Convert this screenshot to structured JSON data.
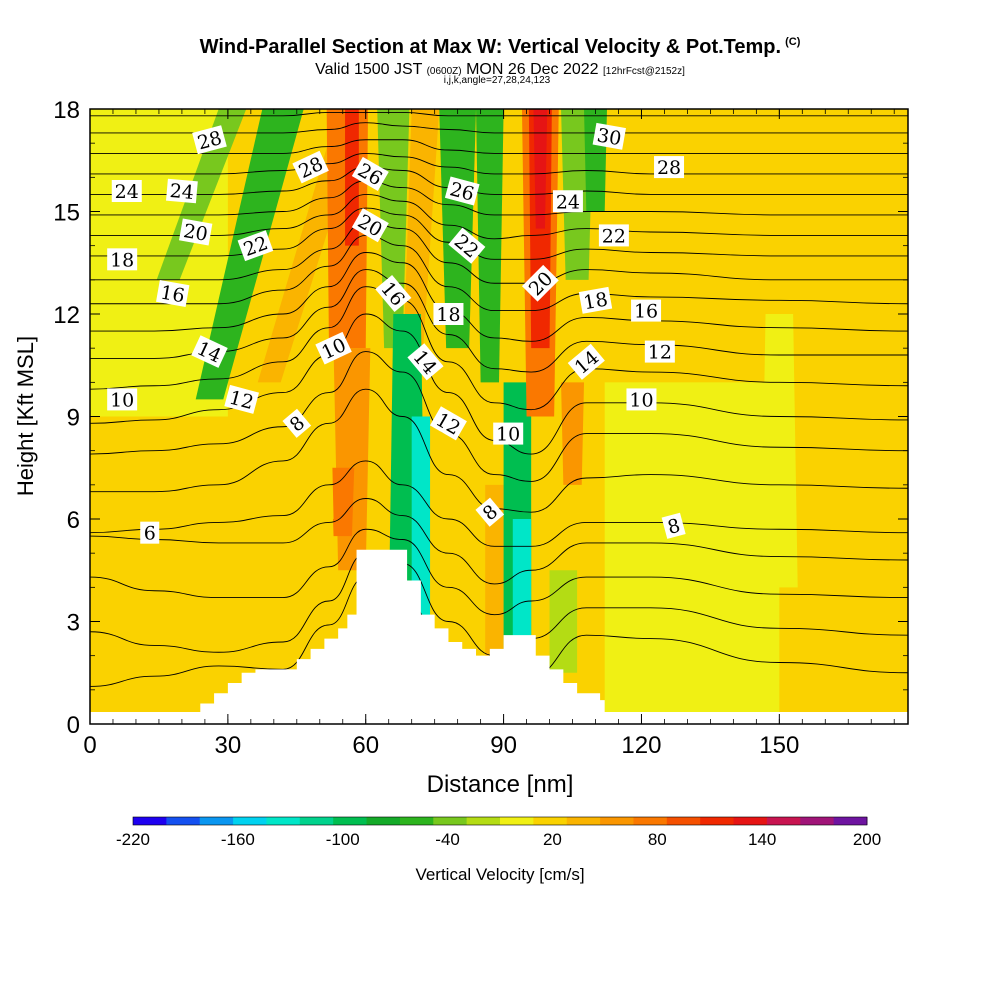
{
  "title": {
    "main": "Wind-Parallel Section at Max W: Vertical Velocity & Pot.Temp.",
    "copyright": "(C)",
    "valid_a": "Valid 1500 JST",
    "valid_z": "(0600Z)",
    "valid_b": "MON 26 Dec 2022",
    "fcst": "[12hrFcst@2152z]",
    "indices": "i,j,k,angle=27,28,24,123"
  },
  "chart_data": {
    "type": "heatmap",
    "xlabel": "Distance [nm]",
    "ylabel": "Height [Kft MSL]",
    "xlim": [
      0,
      178
    ],
    "ylim": [
      0,
      18
    ],
    "xticks": [
      "0",
      "30",
      "60",
      "90",
      "120",
      "150"
    ],
    "xtick_values": [
      0,
      30,
      60,
      90,
      120,
      150
    ],
    "yticks": [
      "0",
      "3",
      "6",
      "9",
      "12",
      "15",
      "18"
    ],
    "ytick_values": [
      0,
      3,
      6,
      9,
      12,
      15,
      18
    ],
    "terrain": {
      "x": [
        0,
        22,
        24,
        27,
        30,
        33,
        36,
        42,
        45,
        48,
        51,
        54,
        56,
        58,
        66,
        69,
        72,
        75,
        78,
        81,
        84,
        87,
        90,
        96,
        97,
        100,
        103,
        106,
        111,
        112,
        178
      ],
      "height": [
        0.35,
        0.35,
        0.6,
        0.9,
        1.2,
        1.5,
        1.6,
        1.6,
        1.9,
        2.2,
        2.5,
        2.8,
        3.2,
        5.1,
        5.1,
        4.2,
        3.2,
        2.8,
        2.4,
        2.2,
        2.0,
        2.2,
        2.6,
        2.6,
        2.0,
        1.6,
        1.2,
        0.9,
        0.7,
        0.35,
        0.35
      ]
    },
    "velocity_colorbar": {
      "label": "Vertical Velocity [cm/s]",
      "tick_labels": [
        "-220",
        "-160",
        "-100",
        "-40",
        "20",
        "80",
        "140",
        "200"
      ],
      "colors": [
        "#1e00f0",
        "#1450f0",
        "#0a96f0",
        "#00d2f0",
        "#00e6c8",
        "#00d28c",
        "#00be50",
        "#14aa28",
        "#2db41e",
        "#78c81e",
        "#b4dc14",
        "#f0f014",
        "#fad200",
        "#fab400",
        "#fa9600",
        "#fa7800",
        "#f55000",
        "#f02800",
        "#e61414",
        "#c81450",
        "#a01478",
        "#6e14a0"
      ]
    },
    "velocity_bands": [
      {
        "x": 26,
        "wb": 6,
        "wt": 9,
        "lean": 16,
        "y0": 9.5,
        "y1": 18,
        "w": -45
      },
      {
        "x": 17,
        "wb": 5,
        "wt": 6,
        "lean": 14,
        "y0": 13,
        "y1": 18,
        "w": -40
      },
      {
        "x": 39,
        "wb": 5,
        "wt": 6,
        "lean": 18,
        "y0": 10,
        "y1": 18,
        "w": 55
      },
      {
        "x": 57,
        "wb": 6,
        "wt": 8,
        "lean": 0,
        "y0": 4.5,
        "y1": 11,
        "w": 60
      },
      {
        "x": 55,
        "wb": 4,
        "wt": 5,
        "lean": 0,
        "y0": 5.5,
        "y1": 7.5,
        "w": 95
      },
      {
        "x": 56,
        "wb": 8,
        "wt": 9,
        "lean": 0,
        "y0": 11,
        "y1": 18,
        "w": 95
      },
      {
        "x": 57,
        "wb": 3,
        "wt": 3,
        "lean": 0,
        "y0": 14,
        "y1": 18,
        "w": 125
      },
      {
        "x": 66,
        "wb": 4,
        "wt": 7,
        "lean": 0,
        "y0": 11,
        "y1": 18,
        "w": -40
      },
      {
        "x": 70,
        "wb": 4,
        "wt": 6,
        "lean": 3,
        "y0": 10,
        "y1": 18,
        "w": 55
      },
      {
        "x": 69,
        "wb": 8,
        "wt": 6,
        "lean": 0,
        "y0": 3,
        "y1": 12,
        "w": -85
      },
      {
        "x": 72,
        "wb": 4,
        "wt": 4,
        "lean": 0,
        "y0": 3,
        "y1": 9,
        "w": -125
      },
      {
        "x": 80,
        "wb": 5,
        "wt": 8,
        "lean": 0,
        "y0": 11,
        "y1": 18,
        "w": -45
      },
      {
        "x": 87,
        "wb": 4,
        "wt": 6,
        "lean": 0,
        "y0": 10,
        "y1": 18,
        "w": -60
      },
      {
        "x": 88,
        "wb": 4,
        "wt": 4,
        "lean": 0,
        "y0": 2,
        "y1": 7,
        "w": 50
      },
      {
        "x": 93,
        "wb": 6,
        "wt": 6,
        "lean": 0,
        "y0": 2,
        "y1": 10,
        "w": -100
      },
      {
        "x": 94,
        "wb": 4,
        "wt": 4,
        "lean": 0,
        "y0": 2,
        "y1": 6,
        "w": -140
      },
      {
        "x": 98,
        "wb": 6,
        "wt": 8,
        "lean": 0,
        "y0": 9,
        "y1": 18,
        "w": 85
      },
      {
        "x": 98,
        "wb": 4,
        "wt": 5,
        "lean": 0,
        "y0": 11,
        "y1": 18,
        "w": 125
      },
      {
        "x": 98,
        "wb": 2,
        "wt": 3,
        "lean": 0,
        "y0": 14.5,
        "y1": 18,
        "w": 150
      },
      {
        "x": 105,
        "wb": 4,
        "wt": 5,
        "lean": 0,
        "y0": 7,
        "y1": 10,
        "w": 75
      },
      {
        "x": 106,
        "wb": 5,
        "wt": 7,
        "lean": 0,
        "y0": 13,
        "y1": 18,
        "w": -40
      },
      {
        "x": 110,
        "wb": 4,
        "wt": 5,
        "lean": 0,
        "y0": 15,
        "y1": 18,
        "w": -45
      },
      {
        "x": 103,
        "wb": 6,
        "wt": 6,
        "lean": 0,
        "y0": 1.5,
        "y1": 4.5,
        "w": -15
      },
      {
        "x": 168,
        "wb": 12,
        "wt": 8,
        "lean": 0,
        "y0": 1,
        "y1": 14,
        "w": 25
      },
      {
        "x": 150,
        "wb": 8,
        "wt": 6,
        "lean": 0,
        "y0": 4,
        "y1": 12,
        "w": 18
      },
      {
        "x": 36,
        "wb": 10,
        "wt": 8,
        "lean": 0,
        "y0": 4,
        "y1": 8,
        "w": 25
      },
      {
        "x": 50,
        "wb": 6,
        "wt": 5,
        "lean": 0,
        "y0": 6,
        "y1": 9,
        "w": 35
      }
    ],
    "isentrope_series": [
      {
        "y0": 1.3,
        "d": [
          -0.2,
          0.1,
          0.4,
          0.3,
          1.6,
          3.0,
          2.5,
          0.7,
          -0.5,
          0.1,
          1.3,
          1.2,
          0.5,
          0.2
        ]
      },
      {
        "y0": 2.4,
        "d": [
          0.3,
          -0.1,
          -0.3,
          0.0,
          1.2,
          2.6,
          2.3,
          0.6,
          -0.4,
          0.1,
          1.0,
          1.0,
          0.4,
          0.2
        ]
      },
      {
        "y0": 3.5,
        "d": [
          0.8,
          0.4,
          0.2,
          0.2,
          1.1,
          2.2,
          1.9,
          0.5,
          -0.3,
          0.1,
          0.8,
          0.8,
          0.3,
          0.2
        ]
      },
      {
        "y0": 4.6,
        "d": [
          0.9,
          0.8,
          0.7,
          0.7,
          1.3,
          2.0,
          1.5,
          0.4,
          -0.5,
          -0.1,
          0.7,
          0.7,
          0.3,
          0.2
        ]
      },
      {
        "y0": 5.5,
        "d": [
          0.1,
          0.2,
          0.4,
          0.6,
          1.5,
          2.2,
          1.5,
          0.5,
          -0.3,
          -0.3,
          0.4,
          0.4,
          0.2,
          0.1
        ]
      },
      {
        "y0": 6.8,
        "d": [
          0.0,
          0.0,
          0.2,
          0.9,
          2.0,
          3.0,
          2.2,
          0.5,
          -0.5,
          -0.6,
          0.4,
          0.5,
          0.2,
          0.1
        ]
      },
      {
        "y0": 7.9,
        "d": [
          0.0,
          0.1,
          0.3,
          0.8,
          1.8,
          3.0,
          2.4,
          0.6,
          -0.6,
          -0.8,
          0.6,
          0.6,
          0.2,
          0.1
        ]
      },
      {
        "y0": 8.8,
        "d": [
          0.0,
          0.1,
          0.4,
          0.9,
          2.0,
          3.2,
          2.7,
          0.9,
          -0.5,
          -0.9,
          0.6,
          0.6,
          0.2,
          0.1
        ]
      },
      {
        "y0": 9.8,
        "d": [
          0.0,
          0.1,
          0.3,
          0.8,
          1.8,
          3.0,
          2.6,
          0.8,
          -0.4,
          -0.6,
          0.6,
          0.5,
          0.2,
          0.1
        ]
      },
      {
        "y0": 10.7,
        "d": [
          0.0,
          0.0,
          0.2,
          0.6,
          1.5,
          2.6,
          2.2,
          0.7,
          -0.3,
          -0.4,
          0.5,
          0.4,
          0.1,
          0.1
        ]
      },
      {
        "y0": 11.5,
        "d": [
          0.0,
          0.0,
          0.1,
          0.5,
          1.3,
          2.3,
          2.0,
          0.6,
          -0.2,
          -0.3,
          0.4,
          0.3,
          0.1,
          0.0
        ]
      },
      {
        "y0": 12.3,
        "d": [
          0.0,
          0.0,
          0.0,
          0.4,
          1.1,
          2.0,
          1.7,
          0.5,
          -0.2,
          -0.2,
          0.3,
          0.2,
          0.1,
          0.0
        ]
      },
      {
        "y0": 13.0,
        "d": [
          0.0,
          0.0,
          0.0,
          0.3,
          0.9,
          1.7,
          1.5,
          0.5,
          -0.1,
          -0.1,
          0.3,
          0.2,
          0.0,
          0.0
        ]
      },
      {
        "y0": 13.7,
        "d": [
          0.0,
          0.0,
          0.0,
          0.2,
          0.8,
          1.4,
          1.2,
          0.4,
          -0.1,
          -0.1,
          0.2,
          0.1,
          0.0,
          0.0
        ]
      },
      {
        "y0": 14.3,
        "d": [
          0.0,
          0.0,
          0.0,
          0.2,
          0.6,
          1.2,
          1.0,
          0.3,
          -0.1,
          0.0,
          0.2,
          0.1,
          0.0,
          0.0
        ]
      },
      {
        "y0": 14.9,
        "d": [
          0.0,
          0.0,
          0.0,
          0.1,
          0.5,
          1.0,
          0.8,
          0.3,
          0.0,
          0.0,
          0.1,
          0.1,
          0.0,
          0.0
        ]
      },
      {
        "y0": 15.5,
        "d": [
          0.0,
          0.0,
          0.0,
          0.1,
          0.4,
          0.8,
          0.7,
          0.2,
          0.0,
          0.0,
          0.1,
          0.0,
          0.0,
          0.0
        ]
      },
      {
        "y0": 16.1,
        "d": [
          0.0,
          0.0,
          0.0,
          0.1,
          0.3,
          0.6,
          0.5,
          0.2,
          0.0,
          0.0,
          0.1,
          0.0,
          0.0,
          0.0
        ]
      },
      {
        "y0": 16.7,
        "d": [
          0.0,
          0.0,
          0.0,
          0.0,
          0.2,
          0.4,
          0.4,
          0.1,
          0.0,
          0.0,
          0.0,
          0.0,
          0.0,
          0.0
        ]
      },
      {
        "y0": 17.3,
        "d": [
          0.0,
          0.0,
          0.0,
          0.0,
          0.1,
          0.3,
          0.2,
          0.1,
          0.0,
          0.0,
          0.0,
          0.0,
          0.0,
          0.0
        ]
      },
      {
        "y0": 17.8,
        "d": [
          0.0,
          0.0,
          0.0,
          0.0,
          0.1,
          0.1,
          0.1,
          0.0,
          0.0,
          0.0,
          0.0,
          0.0,
          0.0,
          0.0
        ]
      }
    ],
    "isentrope_x": [
      0,
      14,
      28,
      42,
      52,
      60,
      68,
      78,
      88,
      96,
      108,
      122,
      150,
      178
    ],
    "contour_labels": [
      {
        "text": "28",
        "x": 26,
        "y": 17.1,
        "rot": -15
      },
      {
        "text": "28",
        "x": 48,
        "y": 16.3,
        "rot": -25
      },
      {
        "text": "26",
        "x": 61,
        "y": 16.1,
        "rot": 30
      },
      {
        "text": "26",
        "x": 81,
        "y": 15.6,
        "rot": 15
      },
      {
        "text": "30",
        "x": 113,
        "y": 17.2,
        "rot": 10
      },
      {
        "text": "28",
        "x": 126,
        "y": 16.3,
        "rot": 0
      },
      {
        "text": "24",
        "x": 8,
        "y": 15.6,
        "rot": 0
      },
      {
        "text": "24",
        "x": 20,
        "y": 15.6,
        "rot": 5
      },
      {
        "text": "24",
        "x": 104,
        "y": 15.3,
        "rot": 0
      },
      {
        "text": "20",
        "x": 23,
        "y": 14.4,
        "rot": 10
      },
      {
        "text": "22",
        "x": 36,
        "y": 14.0,
        "rot": -20
      },
      {
        "text": "20",
        "x": 61,
        "y": 14.6,
        "rot": 30
      },
      {
        "text": "22",
        "x": 82,
        "y": 14.0,
        "rot": 40
      },
      {
        "text": "22",
        "x": 114,
        "y": 14.3,
        "rot": 0
      },
      {
        "text": "18",
        "x": 7,
        "y": 13.6,
        "rot": 0
      },
      {
        "text": "16",
        "x": 18,
        "y": 12.6,
        "rot": 10
      },
      {
        "text": "16",
        "x": 66,
        "y": 12.6,
        "rot": 50
      },
      {
        "text": "20",
        "x": 98,
        "y": 12.9,
        "rot": -45
      },
      {
        "text": "18",
        "x": 78,
        "y": 12.0,
        "rot": 0
      },
      {
        "text": "18",
        "x": 110,
        "y": 12.4,
        "rot": -10
      },
      {
        "text": "16",
        "x": 121,
        "y": 12.1,
        "rot": 0
      },
      {
        "text": "14",
        "x": 26,
        "y": 10.9,
        "rot": 25
      },
      {
        "text": "10",
        "x": 53,
        "y": 11.0,
        "rot": -25
      },
      {
        "text": "14",
        "x": 73,
        "y": 10.6,
        "rot": 50
      },
      {
        "text": "14",
        "x": 108,
        "y": 10.6,
        "rot": -40
      },
      {
        "text": "12",
        "x": 124,
        "y": 10.9,
        "rot": 0
      },
      {
        "text": "10",
        "x": 7,
        "y": 9.5,
        "rot": 0
      },
      {
        "text": "12",
        "x": 33,
        "y": 9.5,
        "rot": 15
      },
      {
        "text": "8",
        "x": 45,
        "y": 8.8,
        "rot": -40
      },
      {
        "text": "12",
        "x": 78,
        "y": 8.8,
        "rot": 30
      },
      {
        "text": "10",
        "x": 91,
        "y": 8.5,
        "rot": 0
      },
      {
        "text": "10",
        "x": 120,
        "y": 9.5,
        "rot": 0
      },
      {
        "text": "8",
        "x": 87,
        "y": 6.2,
        "rot": -40
      },
      {
        "text": "8",
        "x": 127,
        "y": 5.8,
        "rot": -15
      },
      {
        "text": "6",
        "x": 13,
        "y": 5.6,
        "rot": 0
      }
    ]
  }
}
